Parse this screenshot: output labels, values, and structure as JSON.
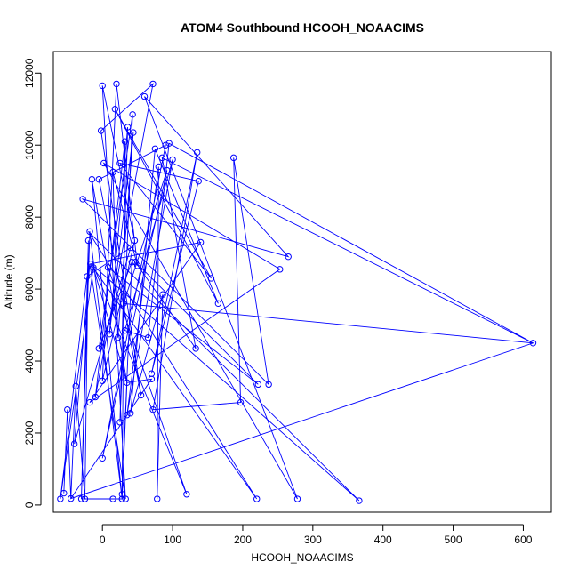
{
  "chart_data": {
    "type": "line",
    "title": "ATOM4 Southbound HCOOH_NOAACIMS",
    "xlabel": "HCOOH_NOAACIMS",
    "ylabel": "Altitude (m)",
    "xlim": [
      -70,
      640
    ],
    "ylim": [
      -200,
      12600
    ],
    "x_ticks": [
      0,
      100,
      200,
      300,
      400,
      500,
      600
    ],
    "y_ticks": [
      0,
      2000,
      4000,
      6000,
      8000,
      10000,
      12000
    ],
    "grid": false,
    "legend": "none",
    "series_color": "#0000ff",
    "markers": "open-circle",
    "points": [
      {
        "x": -60,
        "y": 170
      },
      {
        "x": -55,
        "y": 330
      },
      {
        "x": -50,
        "y": 2650
      },
      {
        "x": -45,
        "y": 180
      },
      {
        "x": -40,
        "y": 1700
      },
      {
        "x": -38,
        "y": 3300
      },
      {
        "x": -30,
        "y": 170
      },
      {
        "x": -25,
        "y": 170
      },
      {
        "x": -28,
        "y": 8500
      },
      {
        "x": -22,
        "y": 6350
      },
      {
        "x": -20,
        "y": 7350
      },
      {
        "x": -18,
        "y": 7600
      },
      {
        "x": -17,
        "y": 6700
      },
      {
        "x": -15,
        "y": 9050
      },
      {
        "x": -13,
        "y": 6600
      },
      {
        "x": -18,
        "y": 2850
      },
      {
        "x": -10,
        "y": 3000
      },
      {
        "x": -5,
        "y": 9050
      },
      {
        "x": -5,
        "y": 4350
      },
      {
        "x": 0,
        "y": 3450
      },
      {
        "x": 0,
        "y": 1300
      },
      {
        "x": -2,
        "y": 10400
      },
      {
        "x": 0,
        "y": 11650
      },
      {
        "x": 2,
        "y": 9500
      },
      {
        "x": 8,
        "y": 6600
      },
      {
        "x": 10,
        "y": 4750
      },
      {
        "x": 15,
        "y": 170
      },
      {
        "x": 15,
        "y": 9250
      },
      {
        "x": 18,
        "y": 11000
      },
      {
        "x": 20,
        "y": 11700
      },
      {
        "x": 22,
        "y": 4650
      },
      {
        "x": 25,
        "y": 2300
      },
      {
        "x": 25,
        "y": 9500
      },
      {
        "x": 28,
        "y": 170
      },
      {
        "x": 28,
        "y": 300
      },
      {
        "x": 30,
        "y": 5600
      },
      {
        "x": 32,
        "y": 10100
      },
      {
        "x": 32,
        "y": 4850
      },
      {
        "x": 33,
        "y": 170
      },
      {
        "x": 35,
        "y": 3400
      },
      {
        "x": 35,
        "y": 2500
      },
      {
        "x": 36,
        "y": 10500
      },
      {
        "x": 40,
        "y": 2550
      },
      {
        "x": 40,
        "y": 7150
      },
      {
        "x": 42,
        "y": 6750
      },
      {
        "x": 43,
        "y": 10850
      },
      {
        "x": 44,
        "y": 10350
      },
      {
        "x": 46,
        "y": 7350
      },
      {
        "x": 47,
        "y": 6750
      },
      {
        "x": 50,
        "y": 6650
      },
      {
        "x": 55,
        "y": 3050
      },
      {
        "x": 60,
        "y": 11350
      },
      {
        "x": 65,
        "y": 4650
      },
      {
        "x": 70,
        "y": 3650
      },
      {
        "x": 70,
        "y": 3500
      },
      {
        "x": 72,
        "y": 11700
      },
      {
        "x": 72,
        "y": 2650
      },
      {
        "x": 75,
        "y": 9900
      },
      {
        "x": 78,
        "y": 170
      },
      {
        "x": 80,
        "y": 9400
      },
      {
        "x": 85,
        "y": 9650
      },
      {
        "x": 86,
        "y": 5850
      },
      {
        "x": 90,
        "y": 10000
      },
      {
        "x": 92,
        "y": 9300
      },
      {
        "x": 95,
        "y": 10050
      },
      {
        "x": 100,
        "y": 9600
      },
      {
        "x": 120,
        "y": 300
      },
      {
        "x": 133,
        "y": 4350
      },
      {
        "x": 135,
        "y": 9800
      },
      {
        "x": 137,
        "y": 9000
      },
      {
        "x": 140,
        "y": 7300
      },
      {
        "x": 155,
        "y": 6300
      },
      {
        "x": 165,
        "y": 5600
      },
      {
        "x": 187,
        "y": 9650
      },
      {
        "x": 197,
        "y": 2850
      },
      {
        "x": 220,
        "y": 170
      },
      {
        "x": 222,
        "y": 3350
      },
      {
        "x": 237,
        "y": 3350
      },
      {
        "x": 253,
        "y": 6550
      },
      {
        "x": 265,
        "y": 6900
      },
      {
        "x": 278,
        "y": 170
      },
      {
        "x": 366,
        "y": 120
      },
      {
        "x": 614,
        "y": 4500
      }
    ],
    "path": [
      [
        -55,
        330
      ],
      [
        -50,
        2650
      ],
      [
        -45,
        180
      ],
      [
        -38,
        3300
      ],
      [
        -25,
        170
      ],
      [
        -20,
        7350
      ],
      [
        -30,
        170
      ],
      [
        -18,
        7600
      ],
      [
        28,
        170
      ],
      [
        -15,
        9050
      ],
      [
        35,
        3400
      ],
      [
        -13,
        6600
      ],
      [
        -60,
        170
      ],
      [
        -22,
        6350
      ],
      [
        40,
        7150
      ],
      [
        -40,
        1700
      ],
      [
        -18,
        6700
      ],
      [
        33,
        170
      ],
      [
        0,
        11650
      ],
      [
        46,
        7350
      ],
      [
        0,
        3450
      ],
      [
        20,
        11700
      ],
      [
        50,
        6650
      ],
      [
        15,
        9250
      ],
      [
        22,
        4650
      ],
      [
        44,
        10350
      ],
      [
        10,
        4750
      ],
      [
        36,
        10500
      ],
      [
        25,
        2300
      ],
      [
        43,
        10850
      ],
      [
        -5,
        4350
      ],
      [
        42,
        6750
      ],
      [
        28,
        300
      ],
      [
        32,
        10100
      ],
      [
        -10,
        3000
      ],
      [
        72,
        11700
      ],
      [
        -2,
        10400
      ],
      [
        55,
        3050
      ],
      [
        -5,
        9050
      ],
      [
        90,
        10000
      ],
      [
        0,
        1300
      ],
      [
        92,
        9300
      ],
      [
        30,
        5600
      ],
      [
        614,
        4500
      ],
      [
        95,
        10050
      ],
      [
        65,
        4650
      ],
      [
        32,
        4850
      ],
      [
        100,
        9600
      ],
      [
        35,
        2500
      ],
      [
        80,
        9400
      ],
      [
        78,
        170
      ],
      [
        86,
        5850
      ],
      [
        40,
        2550
      ],
      [
        75,
        9900
      ],
      [
        165,
        5600
      ],
      [
        18,
        11000
      ],
      [
        155,
        6300
      ],
      [
        25,
        9500
      ],
      [
        137,
        9000
      ],
      [
        70,
        3650
      ],
      [
        135,
        9800
      ],
      [
        72,
        2650
      ],
      [
        197,
        2850
      ],
      [
        187,
        9650
      ],
      [
        237,
        3350
      ],
      [
        -28,
        8500
      ],
      [
        265,
        6900
      ],
      [
        60,
        11350
      ],
      [
        278,
        170
      ],
      [
        2,
        9500
      ],
      [
        253,
        6550
      ],
      [
        -18,
        2850
      ],
      [
        140,
        7300
      ],
      [
        -17,
        6700
      ],
      [
        220,
        170
      ],
      [
        -20,
        7600
      ],
      [
        366,
        120
      ],
      [
        -13,
        6650
      ],
      [
        120,
        300
      ],
      [
        8,
        6600
      ],
      [
        222,
        3350
      ],
      [
        47,
        6750
      ],
      [
        133,
        4350
      ],
      [
        85,
        9650
      ],
      [
        614,
        4500
      ],
      [
        -45,
        180
      ],
      [
        70,
        3500
      ],
      [
        35,
        3400
      ],
      [
        28,
        170
      ],
      [
        -30,
        170
      ]
    ]
  }
}
